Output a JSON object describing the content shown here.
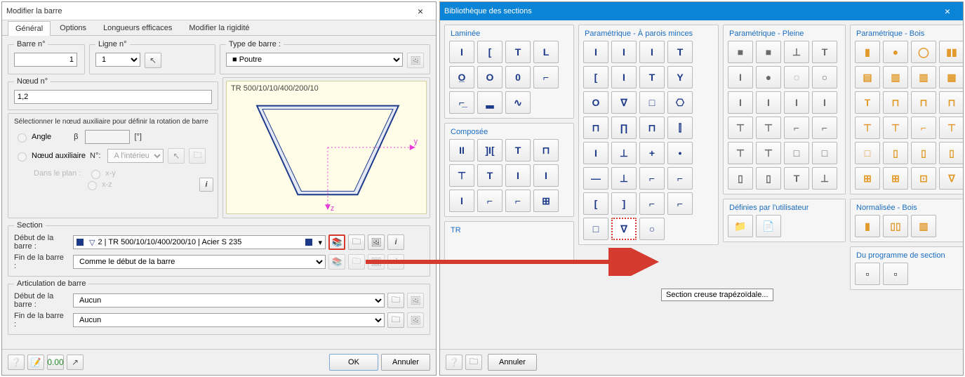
{
  "colors": {
    "accent_blue": "#0a84d6",
    "navy": "#1d3a8a",
    "grey": "#6a6a6a",
    "wood": "#e19a2b",
    "arrow": "#d43a2d",
    "preview_bg": "#fffde8",
    "preview_border": "#d4cf9e",
    "cross_stroke": "#e63bd7"
  },
  "win1": {
    "title": "Modifier la barre",
    "tabs": {
      "general": "Général",
      "options": "Options",
      "lengths": "Longueurs efficaces",
      "stiff": "Modifier la rigidité",
      "active": "general"
    },
    "barre_no": {
      "label": "Barre n°",
      "value": "1"
    },
    "ligne_no": {
      "label": "Ligne n°",
      "value": "1"
    },
    "type_barre": {
      "label": "Type de barre :",
      "value": "Poutre"
    },
    "noeud_no": {
      "label": "Nœud n°",
      "value": "1,2"
    },
    "rotation": {
      "title": "Sélectionner le nœud auxiliaire pour définir la rotation de barre",
      "angle_lbl": "Angle",
      "beta": "β",
      "beta_val": "",
      "deg": "[°]",
      "aux_lbl": "Nœud auxiliaire",
      "n_lbl": "N°:",
      "aux_val": "A l'intérieur",
      "plan_lbl": "Dans le plan :",
      "plan_xy": "x-y",
      "plan_xz": "x-z"
    },
    "preview": {
      "title": "TR 500/10/10/400/200/10",
      "shape": {
        "type": "trapezoid-hollow",
        "top_w": 204,
        "bot_w": 86,
        "height": 128,
        "stroke": "#1d3a8a",
        "fill": "#e3e8f4",
        "axes_color": "#e63bd7"
      }
    },
    "section": {
      "title": "Section",
      "debut_lbl": "Début de la barre :",
      "debut_val": "2  | TR 500/10/10/400/200/10  | Acier S 235",
      "fin_lbl": "Fin de la barre :",
      "fin_val": "Comme le début de la barre"
    },
    "artic": {
      "title": "Articulation de barre",
      "debut_lbl": "Début de la barre :",
      "debut_val": "Aucun",
      "fin_lbl": "Fin de la barre :",
      "fin_val": "Aucun"
    },
    "footer": {
      "ok": "OK",
      "cancel": "Annuler"
    }
  },
  "win2": {
    "title": "Bibliothèque des sections",
    "groups": {
      "lamine": {
        "title": "Laminée",
        "color": "navy",
        "cols": 4,
        "icons": [
          "I",
          "[",
          "T",
          "L",
          "O̲",
          "O",
          "0",
          "⌐",
          "⌐̲",
          "▂",
          "∿",
          ""
        ]
      },
      "parois": {
        "title": "Paramétrique - À parois minces",
        "color": "navy",
        "cols": 4,
        "icons": [
          "I",
          "I",
          "I",
          "T",
          "[",
          "I",
          "T",
          "Y",
          "O",
          "∇",
          "□",
          "⎔",
          "⊓",
          "∏",
          "⊓",
          "⫿",
          "I",
          "⊥",
          "+",
          "•",
          "—",
          "⊥",
          "⌐",
          "⌐",
          "[",
          "]",
          "⌐",
          "⌐",
          "□",
          "∇",
          "○",
          ""
        ]
      },
      "pleine": {
        "title": "Paramétrique - Pleine",
        "color": "grey",
        "cols": 4,
        "icons": [
          "■",
          "■",
          "⊥",
          "T",
          "I",
          "●",
          "◌",
          "○",
          "I",
          "I",
          "I",
          "I",
          "⊤",
          "⊤",
          "⌐",
          "⌐",
          "⊤",
          "⊤",
          "□",
          "□",
          "▯",
          "▯",
          "T",
          "⊥"
        ]
      },
      "bois": {
        "title": "Paramétrique - Bois",
        "color": "wood",
        "cols": 4,
        "icons": [
          "▮",
          "●",
          "◯",
          "▮▮",
          "▤",
          "▥",
          "▥",
          "▦",
          "T",
          "⊓",
          "⊓",
          "⊓",
          "⊤",
          "⊤",
          "⌐",
          "⊤",
          "□",
          "▯",
          "▯",
          "▯",
          "⊞",
          "⊞",
          "⊡",
          "∇"
        ]
      },
      "composee": {
        "title": "Composée",
        "color": "navy",
        "cols": 4,
        "icons": [
          "II",
          "]I[",
          "T",
          "⊓",
          "⊤",
          "T",
          "I",
          "I",
          "I",
          "⌐",
          "⌐",
          "⊞",
          " ",
          " ",
          " ",
          " "
        ]
      },
      "normbois": {
        "title": "Normalisée - Bois",
        "color": "wood",
        "cols": 3,
        "icons": [
          "▮",
          "▯▯",
          "▥"
        ]
      },
      "userdef": {
        "title": "Définies par l'utilisateur",
        "icons": [
          "📁",
          "📄"
        ]
      },
      "progsec": {
        "title": "Du programme de section",
        "icons": [
          "▫",
          "▫"
        ]
      }
    },
    "highlight_index": 29,
    "tooltip": "Section creuse trapézoïdale...",
    "tr": "TR",
    "footer": {
      "cancel": "Annuler"
    }
  }
}
